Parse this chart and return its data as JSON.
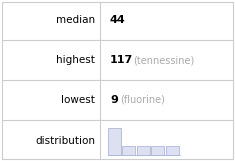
{
  "rows": [
    {
      "label": "median",
      "value": "44",
      "note": ""
    },
    {
      "label": "highest",
      "value": "117",
      "note": "(tennessine)"
    },
    {
      "label": "lowest",
      "value": "9",
      "note": "(fluorine)"
    },
    {
      "label": "distribution",
      "value": "",
      "note": ""
    }
  ],
  "hist_bars": [
    3,
    1,
    1,
    1,
    1
  ],
  "bar_color": "#dde0f0",
  "bar_edge_color": "#b0b8d8",
  "grid_color": "#cccccc",
  "bg_color": "#ffffff",
  "text_color": "#000000",
  "note_color": "#aaaaaa",
  "label_fontsize": 7.5,
  "value_fontsize": 8,
  "note_fontsize": 7
}
